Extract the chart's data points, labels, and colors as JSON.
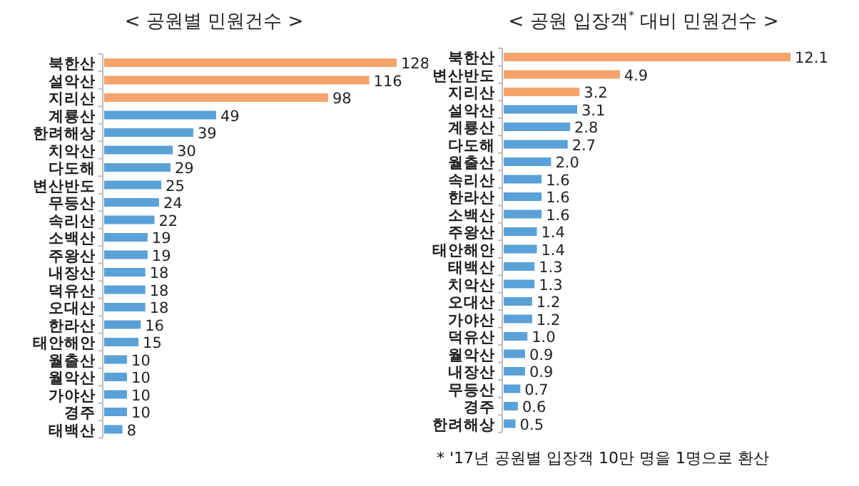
{
  "chart_data": [
    {
      "type": "bar",
      "orientation": "horizontal",
      "title": "< 공원별 민원건수 >",
      "data_labels": true,
      "categories": [
        "북한산",
        "설악산",
        "지리산",
        "계룡산",
        "한려해상",
        "치악산",
        "다도해",
        "변산반도",
        "무등산",
        "속리산",
        "소백산",
        "주왕산",
        "내장산",
        "덕유산",
        "오대산",
        "한라산",
        "태안해안",
        "월출산",
        "월악산",
        "가야산",
        "경주",
        "태백산"
      ],
      "values": [
        128,
        116,
        98,
        49,
        39,
        30,
        29,
        25,
        24,
        22,
        19,
        19,
        18,
        18,
        18,
        16,
        15,
        10,
        10,
        10,
        10,
        8
      ],
      "colors": [
        "#f4a36b",
        "#f4a36b",
        "#f4a36b",
        "#5aa1d8",
        "#5aa1d8",
        "#5aa1d8",
        "#5aa1d8",
        "#5aa1d8",
        "#5aa1d8",
        "#5aa1d8",
        "#5aa1d8",
        "#5aa1d8",
        "#5aa1d8",
        "#5aa1d8",
        "#5aa1d8",
        "#5aa1d8",
        "#5aa1d8",
        "#5aa1d8",
        "#5aa1d8",
        "#5aa1d8",
        "#5aa1d8",
        "#5aa1d8"
      ]
    },
    {
      "type": "bar",
      "orientation": "horizontal",
      "title": "< 공원 입장객$^{*}$ 대비 민원건수 >",
      "value_labels": [
        "12.1",
        "4.9",
        "3.2",
        "3.1",
        "2.8",
        "2.7",
        "2.0",
        "1.6",
        "1.6",
        "1.6",
        "1.4",
        "1.4",
        "1.3",
        "1.3",
        "1.2",
        "1.2",
        "1.0",
        "0.9",
        "0.9",
        "0.7",
        "0.6",
        "0.5"
      ],
      "categories": [
        "북한산",
        "변산반도",
        "지리산",
        "설악산",
        "계룡산",
        "다도해",
        "월출산",
        "속리산",
        "한라산",
        "소백산",
        "주왕산",
        "태안해안",
        "태백산",
        "치악산",
        "오대산",
        "가야산",
        "덕유산",
        "월악산",
        "내장산",
        "무등산",
        "경주",
        "한려해상"
      ],
      "values": [
        12.1,
        4.9,
        3.2,
        3.1,
        2.8,
        2.7,
        2.0,
        1.6,
        1.6,
        1.6,
        1.4,
        1.4,
        1.3,
        1.3,
        1.2,
        1.2,
        1.0,
        0.9,
        0.9,
        0.7,
        0.6,
        0.5
      ],
      "colors": [
        "#f4a36b",
        "#f4a36b",
        "#f4a36b",
        "#5aa1d8",
        "#5aa1d8",
        "#5aa1d8",
        "#5aa1d8",
        "#5aa1d8",
        "#5aa1d8",
        "#5aa1d8",
        "#5aa1d8",
        "#5aa1d8",
        "#5aa1d8",
        "#5aa1d8",
        "#5aa1d8",
        "#5aa1d8",
        "#5aa1d8",
        "#5aa1d8",
        "#5aa1d8",
        "#5aa1d8",
        "#5aa1d8",
        "#5aa1d8"
      ],
      "annotations": [
        "* '17년 공원별 입장객 10만 명을 1명으로 환산"
      ]
    }
  ]
}
